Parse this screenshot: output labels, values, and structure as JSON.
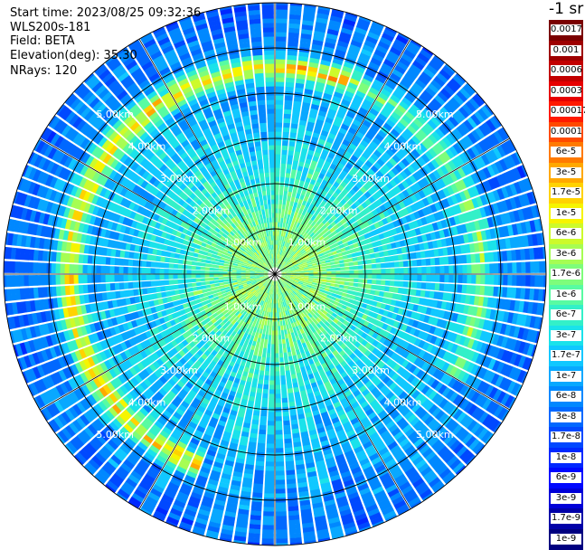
{
  "header": {
    "start_time": "Start time: 2023/08/25 09:32:36",
    "instrument": "WLS200s-181",
    "field": "Field: BETA",
    "elevation": "Elevation(deg): 35.30",
    "nrays": "NRays: 120"
  },
  "colorbar": {
    "unit": "-1 sr",
    "labels": [
      "0.0017",
      "0.001",
      "0.0006",
      "0.0003",
      "0.00017",
      "0.0001",
      "6e-5",
      "3e-5",
      "1.7e-5",
      "1e-5",
      "6e-6",
      "3e-6",
      "1.7e-6",
      "1e-6",
      "6e-7",
      "3e-7",
      "1.7e-7",
      "1e-7",
      "6e-8",
      "3e-8",
      "1.7e-8",
      "1e-8",
      "6e-9",
      "3e-9",
      "1.7e-9",
      "1e-9"
    ],
    "colors": [
      "#7a0000",
      "#9e0000",
      "#c20000",
      "#e60000",
      "#ff1a00",
      "#ff4a00",
      "#ff7a00",
      "#ffa800",
      "#ffd200",
      "#f6f400",
      "#cdfa2b",
      "#a6fd53",
      "#7efd7b",
      "#58fba2",
      "#33f0c8",
      "#1ae2ea",
      "#10c8ff",
      "#08a8ff",
      "#0088ff",
      "#0068ff",
      "#0048ff",
      "#0028ff",
      "#0008ff",
      "#0000d8",
      "#0000a8",
      "#000080"
    ]
  },
  "chart_data": {
    "type": "heatmap",
    "projection": "polar PPI (plan position indicator)",
    "field": "BETA",
    "unit": "-1 sr",
    "elevation_deg": 35.3,
    "n_rays": 120,
    "range_rings_km": [
      1.0,
      2.0,
      3.0,
      4.0,
      5.0
    ],
    "ring_labels": [
      "1.00km",
      "2.00km",
      "3.00km",
      "4.00km",
      "5.00km"
    ],
    "max_range_km": 6.0,
    "radial_profile_beta": [
      {
        "range_km": 0.5,
        "beta": 1.7e-06
      },
      {
        "range_km": 1.0,
        "beta": 1.5e-06
      },
      {
        "range_km": 2.0,
        "beta": 5e-07
      },
      {
        "range_km": 3.0,
        "beta": 2e-07
      },
      {
        "range_km": 4.0,
        "beta": 1.2e-07
      },
      {
        "range_km": 5.0,
        "beta": 6e-08
      },
      {
        "range_km": 6.0,
        "beta": 3e-08
      }
    ],
    "cloud_layer": {
      "range_km": [
        4.1,
        4.9
      ],
      "beta": 3e-05,
      "azimuth_coverage": "north and west, patchy east"
    }
  }
}
